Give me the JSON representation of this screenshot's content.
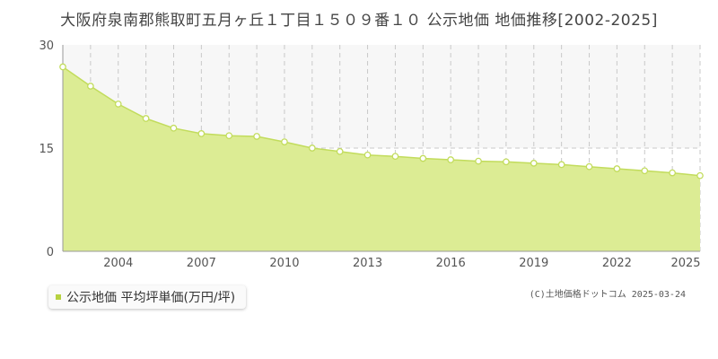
{
  "colors": {
    "fill": "#dcec94",
    "line": "#c2dc5c",
    "marker_fill": "#ffffff",
    "grid": "#c8c8c8",
    "upper_band": "#f7f7f7",
    "legend_swatch": "#b7d240"
  },
  "chart_data": {
    "type": "area",
    "title": "大阪府泉南郡熊取町五月ヶ丘１丁目１５０９番１０ 公示地価 地価推移[2002-2025]",
    "x": [
      2002,
      2003,
      2004,
      2005,
      2006,
      2007,
      2008,
      2009,
      2010,
      2011,
      2012,
      2013,
      2014,
      2015,
      2016,
      2017,
      2018,
      2019,
      2020,
      2021,
      2022,
      2023,
      2024,
      2025
    ],
    "series": [
      {
        "name": "公示地価 平均坪単価(万円/坪)",
        "values": [
          26.8,
          24.0,
          21.4,
          19.3,
          17.9,
          17.1,
          16.8,
          16.7,
          15.9,
          15.0,
          14.5,
          14.0,
          13.8,
          13.5,
          13.3,
          13.1,
          13.0,
          12.8,
          12.6,
          12.3,
          12.0,
          11.7,
          11.4,
          11.0
        ]
      }
    ],
    "x_ticks": [
      "2004",
      "2007",
      "2010",
      "2013",
      "2016",
      "2019",
      "2022",
      "2025"
    ],
    "x_tick_values": [
      2004,
      2007,
      2010,
      2013,
      2016,
      2019,
      2022,
      2025
    ],
    "y_ticks": [
      "0",
      "15",
      "30"
    ],
    "y_tick_values": [
      0,
      15,
      30
    ],
    "xlim": [
      2002,
      2025
    ],
    "ylim": [
      0,
      30
    ],
    "grid": true,
    "legend_position": "bottom-left"
  },
  "credit": "(C)土地価格ドットコム 2025-03-24"
}
